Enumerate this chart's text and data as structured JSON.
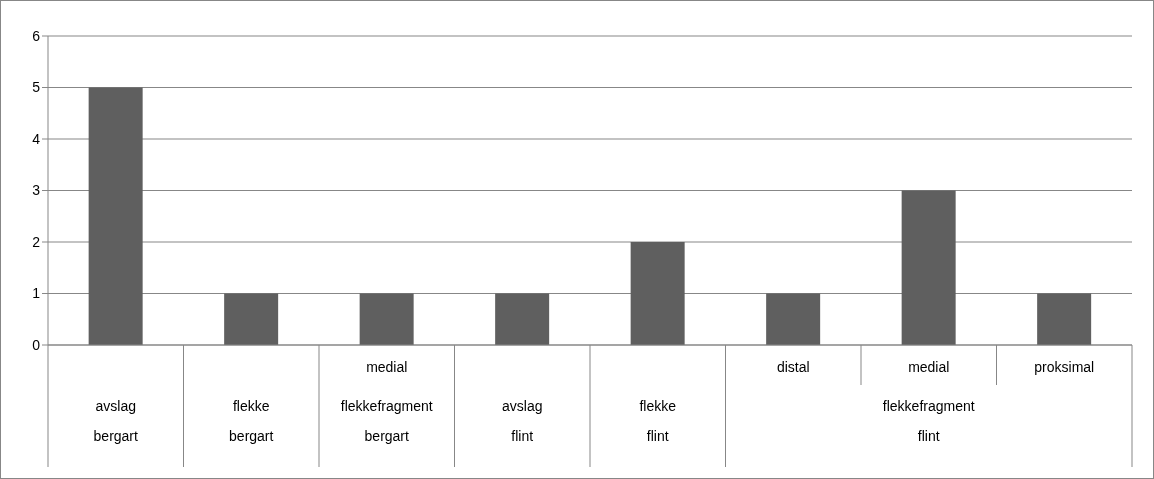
{
  "chart_data": {
    "type": "bar",
    "categories": [
      "avslag\nbergart",
      "flekke\nbergart",
      "medial\nflekkefragment\nbergart",
      "avslag\nflint",
      "flekke\nflint",
      "distal",
      "medial",
      "proksimal"
    ],
    "values": [
      5,
      1,
      1,
      1,
      2,
      1,
      3,
      1
    ],
    "color": "#5f5f5f",
    "annotations": [
      "flekkefragment",
      "flint"
    ],
    "ylim": [
      0,
      6
    ],
    "yticks": [
      0,
      1,
      2,
      3,
      4,
      5,
      6
    ],
    "grid": "y"
  }
}
